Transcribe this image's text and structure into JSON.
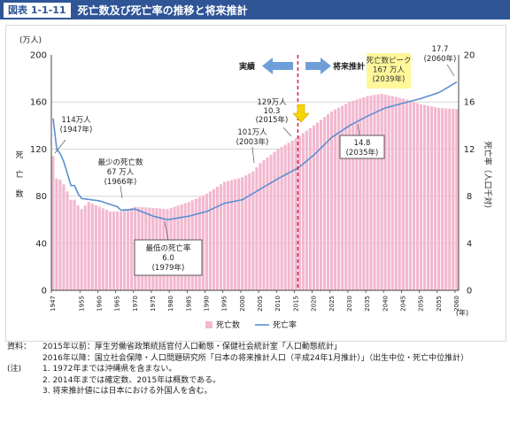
{
  "header": {
    "figure_label": "図表 1-1-11",
    "title": "死亡数及び死亡率の推移と将来推計"
  },
  "colors": {
    "bars": "#f2b8cf",
    "line": "#5b8fd0",
    "divider": "#e0284e",
    "arrow": "#6f9fd8",
    "highlight": "#fff79a",
    "header": "#2f5597"
  },
  "chart_data": {
    "type": "bar",
    "left_axis": {
      "unit_label": "(万人)",
      "title": "死亡数",
      "range": [
        0,
        200
      ],
      "ticks": [
        "0",
        "40",
        "80",
        "120",
        "160",
        "200"
      ]
    },
    "right_axis": {
      "title": "死亡率（人口千対）",
      "range": [
        0,
        20
      ],
      "ticks": [
        "0",
        "4",
        "8",
        "12",
        "16",
        "20"
      ]
    },
    "x_axis": {
      "range": [
        1947,
        2060
      ],
      "unit": "(年)",
      "tick_labels": [
        "1947",
        "1955",
        "1960",
        "1965",
        "1970",
        "1975",
        "1980",
        "1985",
        "1990",
        "1995",
        "2000",
        "2005",
        "2010",
        "2015",
        "2020",
        "2025",
        "2030",
        "2035",
        "2040",
        "2045",
        "2050",
        "2055",
        "2060"
      ]
    },
    "legend": {
      "position": "bottom",
      "bars_label": "死亡数",
      "line_label": "死亡率"
    },
    "divider_year": 2016,
    "anchor_values": {
      "bars": [
        [
          1947,
          114
        ],
        [
          1948,
          95
        ],
        [
          1949,
          94
        ],
        [
          1950,
          90
        ],
        [
          1951,
          84
        ],
        [
          1952,
          77
        ],
        [
          1953,
          77
        ],
        [
          1954,
          72
        ],
        [
          1955,
          69
        ],
        [
          1957,
          75
        ],
        [
          1960,
          71
        ],
        [
          1963,
          67
        ],
        [
          1966,
          67
        ],
        [
          1970,
          71
        ],
        [
          1975,
          70
        ],
        [
          1979,
          69
        ],
        [
          1985,
          75
        ],
        [
          1990,
          82
        ],
        [
          1995,
          92
        ],
        [
          2000,
          96
        ],
        [
          2003,
          101
        ],
        [
          2005,
          108
        ],
        [
          2010,
          120
        ],
        [
          2015,
          129
        ],
        [
          2020,
          140
        ],
        [
          2025,
          152
        ],
        [
          2030,
          160
        ],
        [
          2035,
          165
        ],
        [
          2039,
          167
        ],
        [
          2045,
          163
        ],
        [
          2050,
          158
        ],
        [
          2055,
          155
        ],
        [
          2060,
          154
        ]
      ],
      "rate": [
        [
          1947,
          14.6
        ],
        [
          1948,
          12.0
        ],
        [
          1949,
          11.6
        ],
        [
          1950,
          10.9
        ],
        [
          1951,
          9.9
        ],
        [
          1952,
          8.9
        ],
        [
          1953,
          8.9
        ],
        [
          1954,
          8.2
        ],
        [
          1955,
          7.8
        ],
        [
          1960,
          7.6
        ],
        [
          1965,
          7.1
        ],
        [
          1966,
          6.8
        ],
        [
          1970,
          6.9
        ],
        [
          1975,
          6.3
        ],
        [
          1979,
          6.0
        ],
        [
          1985,
          6.3
        ],
        [
          1990,
          6.7
        ],
        [
          1995,
          7.4
        ],
        [
          2000,
          7.7
        ],
        [
          2005,
          8.6
        ],
        [
          2010,
          9.5
        ],
        [
          2015,
          10.3
        ],
        [
          2016,
          10.5
        ],
        [
          2020,
          11.5
        ],
        [
          2025,
          13.0
        ],
        [
          2030,
          14.0
        ],
        [
          2035,
          14.8
        ],
        [
          2040,
          15.5
        ],
        [
          2045,
          15.9
        ],
        [
          2050,
          16.3
        ],
        [
          2055,
          16.8
        ],
        [
          2060,
          17.7
        ]
      ]
    },
    "arrows": {
      "past": "実績",
      "future": "将来推計"
    },
    "annotations": [
      {
        "lines": [
          "114万人",
          "(1947年)"
        ]
      },
      {
        "lines": [
          "最少の死亡数",
          "67 万人",
          "(1966年)"
        ]
      },
      {
        "lines": [
          "最低の死亡率",
          "6.0",
          "(1979年)"
        ]
      },
      {
        "lines": [
          "101万人",
          "(2003年)"
        ]
      },
      {
        "lines": [
          "129万人",
          "10.3",
          "(2015年)"
        ]
      },
      {
        "lines": [
          "死亡数ピーク",
          "167 万人",
          "(2039年)"
        ]
      },
      {
        "lines": [
          "14.8",
          "(2035年)"
        ]
      },
      {
        "lines": [
          "17.7",
          "(2060年)"
        ]
      }
    ]
  },
  "notes": [
    {
      "tag": "資料：",
      "text": "2015年以前：厚生労働省政策統括官付人口動態・保健社会統計室「人口動態統計」"
    },
    {
      "tag": "",
      "text": "2016年以降：国立社会保障・人口問題研究所「日本の将来推計人口（平成24年1月推計）」（出生中位・死亡中位推計）"
    },
    {
      "tag": "(注)",
      "text": "1. 1972年までは沖縄県を含まない。"
    },
    {
      "tag": "",
      "text": "2. 2014年までは確定数、2015年は概数である。"
    },
    {
      "tag": "",
      "text": "3. 将来推計値には日本における外国人を含む。"
    }
  ]
}
